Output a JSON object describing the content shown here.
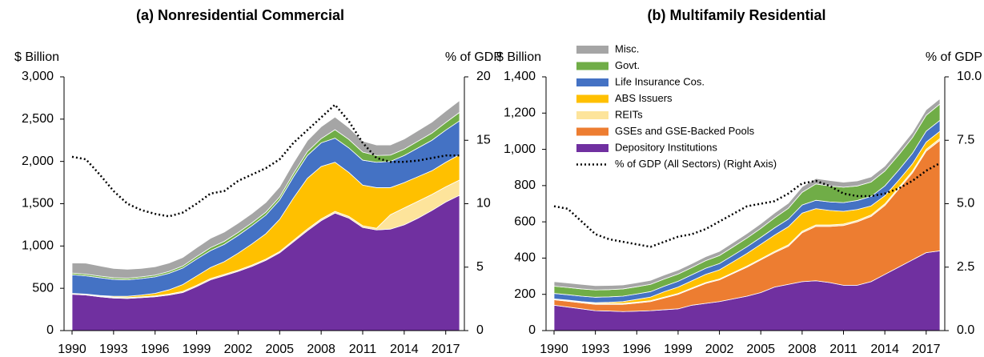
{
  "chart_data": [
    {
      "type": "stacked_area",
      "title": "(a)   Nonresidential Commercial",
      "ylabel": "$ Billion",
      "y2label": "% of GDP",
      "x": [
        1990,
        1991,
        1992,
        1993,
        1994,
        1995,
        1996,
        1997,
        1998,
        1999,
        2000,
        2001,
        2002,
        2003,
        2004,
        2005,
        2006,
        2007,
        2008,
        2009,
        2010,
        2011,
        2012,
        2013,
        2014,
        2015,
        2016,
        2017,
        2018
      ],
      "xlim": [
        1990,
        2018
      ],
      "xticks": [
        1990,
        1993,
        1996,
        1999,
        2002,
        2005,
        2008,
        2011,
        2014,
        2017
      ],
      "ylim": [
        0,
        3000
      ],
      "yticks": [
        0,
        500,
        {
          "value": 1000,
          "label": "1,000"
        },
        {
          "value": 1500,
          "label": "1,500"
        },
        {
          "value": 2000,
          "label": "2,000"
        },
        {
          "value": 2500,
          "label": "2,500"
        },
        {
          "value": 3000,
          "label": "3,000"
        }
      ],
      "y2lim": [
        0,
        20
      ],
      "y2ticks": [
        0,
        5,
        10,
        15,
        20
      ],
      "series": [
        {
          "color": "#7030a0",
          "values": [
            430,
            420,
            400,
            385,
            380,
            390,
            400,
            420,
            450,
            520,
            600,
            650,
            700,
            760,
            830,
            920,
            1050,
            1180,
            1300,
            1390,
            1330,
            1220,
            1190,
            1200,
            1250,
            1330,
            1420,
            1520,
            1600
          ]
        },
        {
          "color": "#fde49b",
          "values": [
            10,
            10,
            10,
            10,
            10,
            10,
            10,
            12,
            14,
            15,
            15,
            15,
            15,
            15,
            15,
            15,
            18,
            20,
            20,
            20,
            20,
            20,
            20,
            170,
            200,
            200,
            190,
            180,
            180
          ]
        },
        {
          "color": "#ffc000",
          "values": [
            0,
            2,
            5,
            10,
            15,
            20,
            30,
            50,
            80,
            110,
            130,
            150,
            200,
            250,
            300,
            380,
            500,
            600,
            620,
            580,
            520,
            480,
            480,
            320,
            300,
            290,
            280,
            290,
            300
          ]
        },
        {
          "color": "#4472c4",
          "values": [
            220,
            215,
            210,
            200,
            195,
            195,
            195,
            195,
            195,
            200,
            200,
            205,
            210,
            215,
            220,
            230,
            250,
            270,
            280,
            285,
            290,
            295,
            300,
            310,
            320,
            340,
            360,
            380,
            400
          ]
        },
        {
          "color": "#70ad47",
          "values": [
            20,
            20,
            20,
            20,
            20,
            20,
            20,
            22,
            25,
            30,
            35,
            35,
            35,
            35,
            35,
            35,
            40,
            45,
            50,
            100,
            100,
            95,
            80,
            75,
            75,
            80,
            85,
            90,
            100
          ]
        },
        {
          "color": "#a5a5a5",
          "values": [
            120,
            130,
            120,
            110,
            105,
            100,
            100,
            100,
            100,
            105,
            110,
            110,
            110,
            110,
            115,
            120,
            125,
            130,
            140,
            150,
            140,
            130,
            125,
            120,
            120,
            125,
            130,
            135,
            140
          ]
        },
        {
          "type": "line",
          "axis": "y2",
          "style": "dotted",
          "color": "#000000",
          "values": [
            13.7,
            13.5,
            12.3,
            11,
            10,
            9.5,
            9.2,
            9,
            9.3,
            10,
            10.8,
            11,
            11.8,
            12.3,
            12.8,
            13.5,
            14.8,
            15.8,
            16.8,
            17.8,
            16.5,
            14.8,
            13.6,
            13.3,
            13.3,
            13.4,
            13.6,
            13.8,
            13.8
          ]
        }
      ]
    },
    {
      "type": "stacked_area",
      "title": "(b)   Multifamily Residential",
      "ylabel": "$ Billion",
      "y2label": "% of GDP",
      "legend": "upper left",
      "x": [
        1990,
        1991,
        1992,
        1993,
        1994,
        1995,
        1996,
        1997,
        1998,
        1999,
        2000,
        2001,
        2002,
        2003,
        2004,
        2005,
        2006,
        2007,
        2008,
        2009,
        2010,
        2011,
        2012,
        2013,
        2014,
        2015,
        2016,
        2017,
        2018
      ],
      "xlim": [
        1990,
        2018
      ],
      "xticks": [
        1990,
        1993,
        1996,
        1999,
        2002,
        2005,
        2008,
        2011,
        2014,
        2017
      ],
      "ylim": [
        0,
        1400
      ],
      "yticks": [
        0,
        200,
        400,
        600,
        800,
        {
          "value": 1000,
          "label": "1,000"
        },
        {
          "value": 1200,
          "label": "1,200"
        },
        {
          "value": 1400,
          "label": "1,400"
        }
      ],
      "y2lim": [
        0,
        10
      ],
      "y2ticks": [
        {
          "value": 0,
          "label": "0.0"
        },
        2.5,
        {
          "value": 5,
          "label": "5.0"
        },
        7.5,
        {
          "value": 10,
          "label": "10.0"
        }
      ],
      "series": [
        {
          "name": "Depository Institutions",
          "color": "#7030a0",
          "values": [
            140,
            130,
            120,
            110,
            108,
            105,
            107,
            110,
            115,
            120,
            140,
            150,
            160,
            175,
            190,
            210,
            240,
            255,
            270,
            275,
            265,
            250,
            250,
            270,
            310,
            350,
            390,
            430,
            440
          ]
        },
        {
          "name": "GSEs and GSE-Backed Pools",
          "color": "#ed7d31",
          "values": [
            30,
            32,
            33,
            35,
            37,
            40,
            45,
            50,
            65,
            80,
            90,
            110,
            120,
            140,
            160,
            180,
            190,
            210,
            270,
            300,
            310,
            330,
            350,
            360,
            380,
            430,
            480,
            560,
            610
          ]
        },
        {
          "name": "REITs",
          "color": "#fde49b",
          "values": [
            5,
            5,
            5,
            5,
            5,
            5,
            5,
            5,
            5,
            5,
            5,
            5,
            5,
            5,
            6,
            6,
            7,
            8,
            8,
            8,
            8,
            8,
            8,
            8,
            9,
            9,
            10,
            10,
            10
          ]
        },
        {
          "name": "ABS Issuers",
          "color": "#ffc000",
          "values": [
            0,
            1,
            2,
            4,
            6,
            10,
            15,
            20,
            30,
            35,
            40,
            45,
            50,
            60,
            70,
            80,
            90,
            100,
            100,
            90,
            80,
            70,
            60,
            50,
            45,
            40,
            40,
            40,
            40
          ]
        },
        {
          "name": "Life Insurance Cos.",
          "color": "#4472c4",
          "values": [
            30,
            30,
            30,
            30,
            30,
            30,
            30,
            30,
            30,
            32,
            33,
            34,
            35,
            36,
            37,
            38,
            40,
            42,
            45,
            46,
            47,
            48,
            50,
            52,
            54,
            56,
            58,
            60,
            60
          ]
        },
        {
          "name": "Govt.",
          "color": "#70ad47",
          "values": [
            40,
            40,
            40,
            40,
            40,
            40,
            40,
            40,
            40,
            40,
            40,
            42,
            44,
            46,
            48,
            50,
            55,
            60,
            70,
            90,
            88,
            85,
            80,
            80,
            82,
            84,
            86,
            88,
            90
          ]
        },
        {
          "name": "Misc.",
          "color": "#a5a5a5",
          "values": [
            25,
            25,
            25,
            24,
            23,
            22,
            22,
            22,
            22,
            22,
            22,
            22,
            23,
            24,
            25,
            26,
            27,
            28,
            30,
            30,
            30,
            28,
            28,
            28,
            28,
            29,
            29,
            30,
            30
          ]
        },
        {
          "name": "% of GDP (All Sectors) (Right Axis)",
          "type": "line",
          "axis": "y2",
          "style": "dotted",
          "color": "#000000",
          "values": [
            4.9,
            4.8,
            4.3,
            3.8,
            3.6,
            3.5,
            3.4,
            3.3,
            3.5,
            3.7,
            3.8,
            4,
            4.3,
            4.6,
            4.9,
            5,
            5.1,
            5.4,
            5.8,
            5.9,
            5.7,
            5.4,
            5.3,
            5.3,
            5.4,
            5.6,
            5.9,
            6.3,
            6.6
          ]
        }
      ]
    }
  ]
}
